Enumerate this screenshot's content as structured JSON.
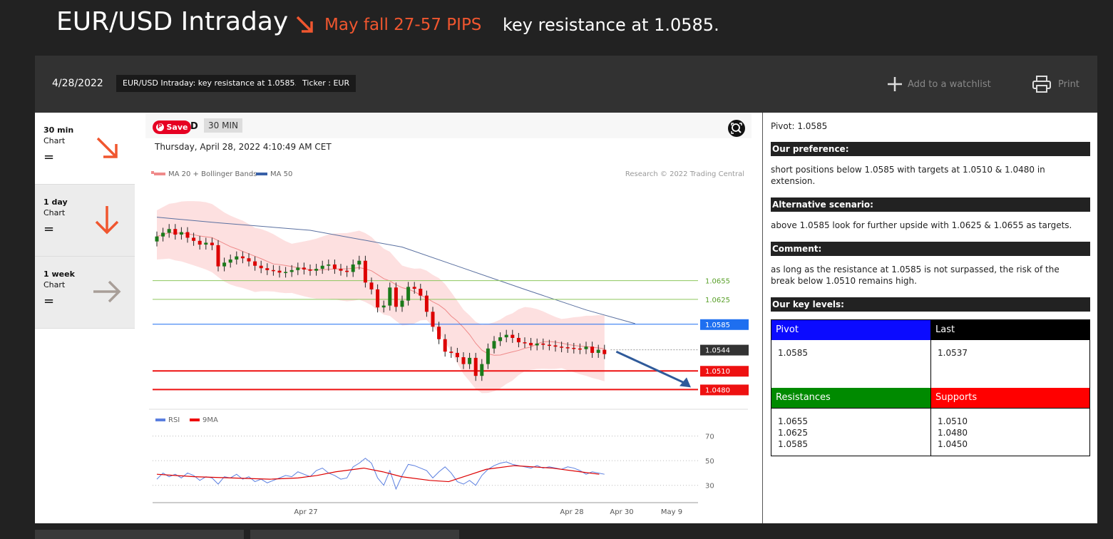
{
  "header": {
    "title": "EUR/USD Intraday",
    "tagline": "May fall 27-57 PIPS",
    "resistance_text": "key resistance at 1.0585.",
    "accent_color": "#f0562f"
  },
  "toolbar": {
    "date": "4/28/2022",
    "chip_title": "EUR/USD Intraday: key resistance at 1.0585.",
    "chip_ticker": "Ticker : EUR",
    "watchlist_label": "Add to a watchlist",
    "print_label": "Print"
  },
  "timeframes": [
    {
      "name": "30 min",
      "sub": "Chart",
      "eq": "=",
      "icon": "arrow-down-right-icon"
    },
    {
      "name": "1 day",
      "sub": "Chart",
      "eq": "=",
      "icon": "arrow-down-icon"
    },
    {
      "name": "1 week",
      "sub": "Chart",
      "eq": "=",
      "icon": "arrow-right-icon"
    }
  ],
  "chart": {
    "save_label": "Save",
    "d_label": "D",
    "timeframe_badge": "30 MIN",
    "datetime": "Thursday, April 28, 2022 4:10:49 AM CET",
    "legend": [
      "MA 20 + Bollinger Bands",
      "MA 50"
    ],
    "copyright": "Research © 2022 Trading Central",
    "rsi_legend": [
      "RSI",
      "9MA"
    ]
  },
  "chart_data": {
    "type": "line",
    "title": "",
    "x_ticks": [
      "Apr 27",
      "Apr 28",
      "Apr 30",
      "May 9"
    ],
    "levels": [
      {
        "value": 1.0655,
        "label": "1.0655",
        "color": "#8dc65c"
      },
      {
        "value": 1.0625,
        "label": "1.0625",
        "color": "#8dc65c"
      },
      {
        "value": 1.0585,
        "label": "1.0585",
        "color": "#1e6ff0"
      },
      {
        "value": 1.0544,
        "label": "1.0544",
        "color": "#333333"
      },
      {
        "value": 1.051,
        "label": "1.0510",
        "color": "#ee1111"
      },
      {
        "value": 1.048,
        "label": "1.0480",
        "color": "#ee1111"
      }
    ],
    "price_ylim": [
      1.0453,
      1.0815
    ],
    "close_series": [
      1.0726,
      1.0732,
      1.0738,
      1.0729,
      1.0733,
      1.0724,
      1.0719,
      1.0713,
      1.0716,
      1.0712,
      1.0678,
      1.0684,
      1.0689,
      1.0694,
      1.0691,
      1.0686,
      1.0679,
      1.0675,
      1.0672,
      1.0671,
      1.0668,
      1.0669,
      1.0672,
      1.0676,
      1.0673,
      1.0671,
      1.0674,
      1.0679,
      1.0681,
      1.0674,
      1.0671,
      1.0669,
      1.0681,
      1.0687,
      1.0652,
      1.0641,
      1.0612,
      1.0615,
      1.0644,
      1.0613,
      1.0623,
      1.0645,
      1.0642,
      1.0631,
      1.0605,
      1.0581,
      1.0561,
      1.0541,
      1.0539,
      1.0532,
      1.0521,
      1.0531,
      1.0502,
      1.0521,
      1.0546,
      1.0558,
      1.0564,
      1.0568,
      1.0563,
      1.0556,
      1.0555,
      1.0551,
      1.0554,
      1.0552,
      1.0551,
      1.0549,
      1.0548,
      1.0547,
      1.0546,
      1.0545,
      1.0549,
      1.0539,
      1.0544,
      1.0537
    ],
    "ma50_series": [
      [
        0,
        1.0757
      ],
      [
        10,
        1.0748
      ],
      [
        25,
        1.0736
      ],
      [
        40,
        1.0709
      ],
      [
        50,
        1.0675
      ],
      [
        60,
        1.0641
      ],
      [
        70,
        1.0608
      ],
      [
        78,
        1.0586
      ]
    ],
    "rsi_levels": [
      70,
      50,
      30
    ],
    "rsi_ylim": [
      20,
      75
    ],
    "rsi_series": [
      35,
      40,
      37,
      39,
      36,
      40,
      38,
      34,
      37,
      36,
      31,
      37,
      36,
      39,
      35,
      37,
      33,
      35,
      32,
      34,
      36,
      38,
      37,
      41,
      39,
      37,
      42,
      44,
      40,
      38,
      35,
      36,
      45,
      48,
      52,
      48,
      36,
      30,
      42,
      27,
      38,
      47,
      46,
      44,
      42,
      36,
      41,
      45,
      40,
      33,
      31,
      34,
      30,
      38,
      43,
      46,
      48,
      49,
      47,
      46,
      45,
      44,
      46,
      44,
      45,
      44,
      43,
      45,
      44,
      42,
      39,
      41,
      40,
      39
    ],
    "rsi_ma_series": [
      [
        0,
        39
      ],
      [
        8,
        37
      ],
      [
        16,
        36
      ],
      [
        24,
        35
      ],
      [
        30,
        36
      ],
      [
        34,
        38
      ],
      [
        38,
        41
      ],
      [
        44,
        44
      ],
      [
        48,
        41
      ],
      [
        52,
        37
      ],
      [
        58,
        34
      ],
      [
        62,
        33
      ],
      [
        66,
        38
      ],
      [
        70,
        43
      ],
      [
        76,
        46
      ],
      [
        84,
        44
      ],
      [
        90,
        41
      ],
      [
        94,
        39
      ]
    ]
  },
  "panel": {
    "pivot_line": "Pivot: 1.0585",
    "pref_title": "Our preference:",
    "pref_text": "short positions below 1.0585 with targets at 1.0510 & 1.0480 in extension.",
    "alt_title": "Alternative scenario:",
    "alt_text": "above 1.0585 look for further upside with 1.0625 & 1.0655 as targets.",
    "comment_title": "Comment:",
    "comment_text": "as long as the resistance at 1.0585 is not surpassed, the risk of the break below 1.0510 remains high.",
    "levels_title": "Our key levels:",
    "table": {
      "pivot_label": "Pivot",
      "pivot_value": "1.0585",
      "last_label": "Last",
      "last_value": "1.0537",
      "res_label": "Resistances",
      "res_values": "1.0655\n1.0625\n1.0585",
      "sup_label": "Supports",
      "sup_values": "1.0510\n1.0480\n1.0450"
    },
    "colors": {
      "pivot": "#0b0bff",
      "last": "#000000",
      "res": "#008a00",
      "sup": "#ff0000"
    }
  }
}
